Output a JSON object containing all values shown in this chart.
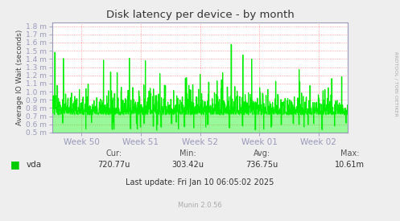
{
  "title": "Disk latency per device - by month",
  "ylabel": "Average IO Wait (seconds)",
  "line_color": "#00ee00",
  "fill_color": "#00ee00",
  "bg_color": "#eeeeee",
  "plot_bg_color": "#ffffff",
  "grid_color": "#ff8888",
  "axis_color": "#9999bb",
  "tick_label_color": "#555555",
  "ytick_labels": [
    "0.5 m",
    "0.6 m",
    "0.7 m",
    "0.8 m",
    "0.9 m",
    "1.0 m",
    "1.1 m",
    "1.2 m",
    "1.3 m",
    "1.4 m",
    "1.5 m",
    "1.6 m",
    "1.7 m",
    "1.8 m"
  ],
  "ytick_values": [
    0.0005,
    0.0006,
    0.0007,
    0.0008,
    0.0009,
    0.001,
    0.0011,
    0.0012,
    0.0013,
    0.0014,
    0.0015,
    0.0016,
    0.0017,
    0.0018
  ],
  "xtick_labels": [
    "Week 50",
    "Week 51",
    "Week 52",
    "Week 01",
    "Week 02"
  ],
  "legend_label": "vda",
  "legend_color": "#00cc00",
  "cur": "720.77u",
  "min": "303.42u",
  "avg": "736.75u",
  "max": "10.61m",
  "last_update": "Last update: Fri Jan 10 06:05:02 2025",
  "watermark": "Munin 2.0.56",
  "rrdtool_label": "RRDTOOL / TOBI OETIKER",
  "ylim_min": 0.0005,
  "ylim_max": 0.00185
}
